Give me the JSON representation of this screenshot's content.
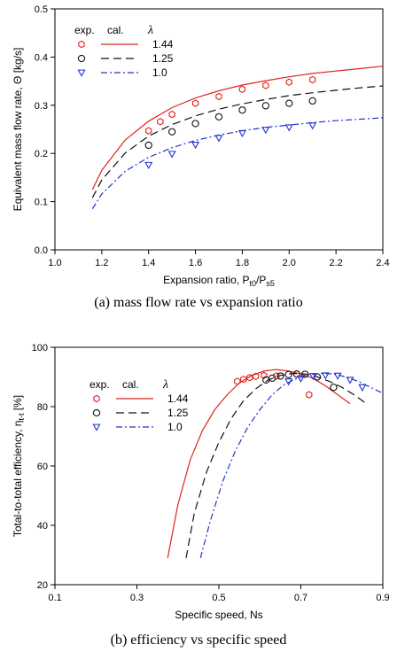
{
  "figure": {
    "caption_a": "(a)  mass flow rate vs expansion ratio",
    "caption_b": "(b)  efficiency vs specific speed"
  },
  "colors": {
    "red": "#e0241c",
    "black": "#111111",
    "blue": "#2233cc"
  },
  "chart_data": [
    {
      "type": "scatter",
      "xlim": [
        1.0,
        2.4
      ],
      "ylim": [
        0.0,
        0.5
      ],
      "xticks": [
        "1.0",
        "1.2",
        "1.4",
        "1.6",
        "1.8",
        "2.0",
        "2.2",
        "2.4"
      ],
      "yticks": [
        "0.0",
        "0.1",
        "0.2",
        "0.3",
        "0.4",
        "0.5"
      ],
      "xlabel": "Expansion ratio, P",
      "xlabel_sub1": "t0",
      "xlabel_mid": "/P",
      "xlabel_sub2": "s5",
      "ylabel": "Equivalent mass flow rate, Θ [kg/s]",
      "legend": {
        "head_exp": "exp.",
        "head_cal": "cal.",
        "head_lambda": "λ",
        "placement": "top-left"
      },
      "series": [
        {
          "name": "1.44",
          "color": "#e0241c",
          "marker": "hexagon",
          "dash": "",
          "exp_x": [
            1.4,
            1.45,
            1.5,
            1.6,
            1.7,
            1.8,
            1.9,
            2.0,
            2.1
          ],
          "exp_y": [
            0.247,
            0.266,
            0.281,
            0.304,
            0.318,
            0.333,
            0.341,
            0.348,
            0.353
          ],
          "cal_x": [
            1.16,
            1.2,
            1.3,
            1.4,
            1.5,
            1.6,
            1.7,
            1.8,
            1.9,
            2.0,
            2.1,
            2.2,
            2.3,
            2.4
          ],
          "cal_y": [
            0.125,
            0.165,
            0.228,
            0.267,
            0.295,
            0.315,
            0.33,
            0.342,
            0.351,
            0.359,
            0.366,
            0.371,
            0.376,
            0.381
          ]
        },
        {
          "name": "1.25",
          "color": "#111111",
          "marker": "circle",
          "dash": "9,5",
          "exp_x": [
            1.4,
            1.5,
            1.6,
            1.7,
            1.8,
            1.9,
            2.0,
            2.1
          ],
          "exp_y": [
            0.217,
            0.245,
            0.262,
            0.276,
            0.29,
            0.299,
            0.304,
            0.309
          ],
          "cal_x": [
            1.16,
            1.2,
            1.3,
            1.4,
            1.5,
            1.6,
            1.7,
            1.8,
            1.9,
            2.0,
            2.1,
            2.2,
            2.3,
            2.4
          ],
          "cal_y": [
            0.108,
            0.145,
            0.201,
            0.236,
            0.26,
            0.278,
            0.292,
            0.303,
            0.312,
            0.32,
            0.326,
            0.331,
            0.336,
            0.34
          ]
        },
        {
          "name": "1.0",
          "color": "#2233cc",
          "marker": "triangle-down",
          "dash": "7,3,2,3",
          "exp_x": [
            1.4,
            1.5,
            1.6,
            1.7,
            1.8,
            1.9,
            2.0,
            2.1
          ],
          "exp_y": [
            0.176,
            0.199,
            0.218,
            0.232,
            0.242,
            0.249,
            0.254,
            0.258
          ],
          "cal_x": [
            1.16,
            1.2,
            1.3,
            1.4,
            1.5,
            1.6,
            1.7,
            1.8,
            1.9,
            2.0,
            2.1,
            2.2,
            2.3,
            2.4
          ],
          "cal_y": [
            0.085,
            0.116,
            0.163,
            0.192,
            0.212,
            0.227,
            0.238,
            0.247,
            0.254,
            0.259,
            0.264,
            0.268,
            0.271,
            0.274
          ]
        }
      ]
    },
    {
      "type": "scatter",
      "xlim": [
        0.1,
        0.9
      ],
      "ylim": [
        20,
        100
      ],
      "xticks": [
        "0.1",
        "0.3",
        "0.5",
        "0.7",
        "0.9"
      ],
      "yticks": [
        "20",
        "40",
        "60",
        "80",
        "100"
      ],
      "xlabel": "Specific speed, Ns",
      "ylabel": "Total-to-total efficiency, η",
      "ylabel_sub": "t-t",
      "ylabel_unit": " [%]",
      "legend": {
        "head_exp": "exp.",
        "head_cal": "cal.",
        "head_lambda": "λ",
        "placement": "top-left"
      },
      "series": [
        {
          "name": "1.44",
          "color": "#e0241c",
          "marker": "hexagon",
          "dash": "",
          "exp_x": [
            0.545,
            0.56,
            0.575,
            0.59,
            0.61,
            0.64,
            0.72
          ],
          "exp_y": [
            88.5,
            89.2,
            89.8,
            90.2,
            90.5,
            90.3,
            84.0
          ],
          "cal_x": [
            0.375,
            0.4,
            0.43,
            0.46,
            0.49,
            0.52,
            0.55,
            0.58,
            0.61,
            0.64,
            0.67,
            0.7,
            0.73,
            0.76,
            0.79,
            0.82
          ],
          "cal_y": [
            29,
            47,
            62,
            72,
            79,
            84,
            88,
            90.5,
            92,
            92.5,
            92,
            91,
            89.5,
            87,
            84,
            81
          ]
        },
        {
          "name": "1.25",
          "color": "#111111",
          "marker": "circle",
          "dash": "9,5",
          "exp_x": [
            0.615,
            0.63,
            0.65,
            0.67,
            0.69,
            0.71,
            0.74,
            0.78
          ],
          "exp_y": [
            89.0,
            89.6,
            90.3,
            90.8,
            91.0,
            90.9,
            90.0,
            86.5
          ],
          "cal_x": [
            0.42,
            0.44,
            0.47,
            0.5,
            0.53,
            0.56,
            0.59,
            0.62,
            0.65,
            0.68,
            0.71,
            0.74,
            0.77,
            0.8,
            0.83,
            0.86
          ],
          "cal_y": [
            29,
            44,
            58,
            68,
            76,
            82,
            86,
            89,
            90.5,
            91.2,
            91,
            90,
            88.5,
            86.5,
            84,
            81
          ]
        },
        {
          "name": "1.0",
          "color": "#2233cc",
          "marker": "triangle-down",
          "dash": "7,3,2,3",
          "exp_x": [
            0.67,
            0.7,
            0.73,
            0.76,
            0.79,
            0.82,
            0.85
          ],
          "exp_y": [
            88.5,
            89.5,
            90.3,
            90.5,
            90.4,
            89.0,
            86.5
          ],
          "cal_x": [
            0.455,
            0.48,
            0.51,
            0.54,
            0.57,
            0.6,
            0.63,
            0.66,
            0.69,
            0.72,
            0.75,
            0.78,
            0.81,
            0.84,
            0.87,
            0.9
          ],
          "cal_y": [
            29,
            42,
            55,
            65,
            73,
            79,
            84,
            87.5,
            89.5,
            90.8,
            91.2,
            91,
            90,
            88.5,
            86.5,
            84.5
          ]
        }
      ]
    }
  ]
}
